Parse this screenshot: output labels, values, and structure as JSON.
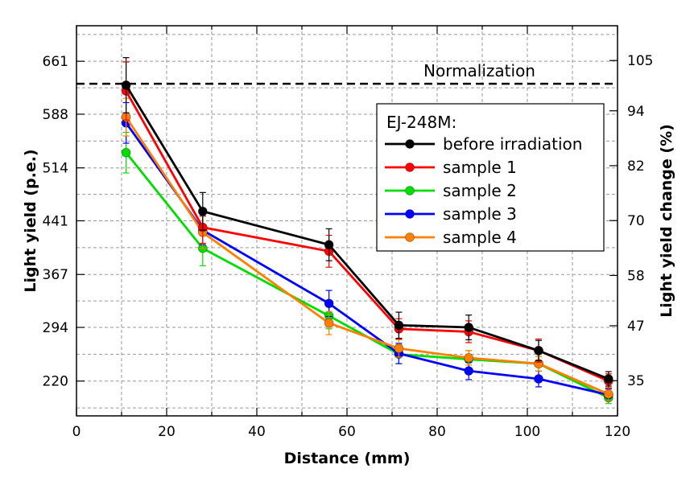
{
  "chart_data": {
    "type": "line",
    "title": "",
    "xlabel": "Distance (mm)",
    "ylabel": "Light yield (p.e.)",
    "y2label": "Light yield change (%)",
    "xlim": [
      0,
      120
    ],
    "ylim": [
      172,
      710
    ],
    "y2lim": [
      27.3,
      112.6
    ],
    "grid": true,
    "x_ticks": [
      0,
      20,
      40,
      60,
      80,
      100,
      120
    ],
    "x_tick_labels": [
      "0",
      "20",
      "40",
      "60",
      "80",
      "100",
      "120"
    ],
    "y_ticks": [
      220,
      294,
      367,
      441,
      514,
      588,
      661
    ],
    "y_tick_labels": [
      "220",
      "294",
      "367",
      "441",
      "514",
      "588",
      "661"
    ],
    "y2_ticks": [
      35,
      47,
      58,
      70,
      82,
      94,
      105
    ],
    "y2_tick_labels": [
      "35",
      "47",
      "58",
      "70",
      "82",
      "94",
      "105"
    ],
    "reference_line": {
      "label": "Normalization",
      "value": 630,
      "style": "dashed",
      "color": "#000000"
    },
    "legend": {
      "title": "EJ-248M:",
      "position": "top-right"
    },
    "x": [
      11,
      28,
      56,
      71.5,
      87,
      102.5,
      118
    ],
    "series": [
      {
        "name": "before irradiation",
        "color": "#000000",
        "values": [
          628,
          454,
          408,
          297,
          294,
          262,
          223
        ],
        "errors": [
          38,
          26,
          22,
          18,
          17,
          14,
          10
        ]
      },
      {
        "name": "sample 1",
        "color": "#ff0000",
        "values": [
          620,
          432,
          399,
          292,
          288,
          262,
          220
        ],
        "errors": [
          40,
          22,
          22,
          14,
          15,
          16,
          10
        ]
      },
      {
        "name": "sample 2",
        "color": "#00dd00",
        "values": [
          535,
          403,
          310,
          257,
          250,
          244,
          197
        ],
        "errors": [
          28,
          24,
          18,
          13,
          12,
          10,
          8
        ]
      },
      {
        "name": "sample 3",
        "color": "#0000ff",
        "values": [
          576,
          428,
          327,
          258,
          234,
          223,
          201
        ],
        "errors": [
          28,
          20,
          18,
          14,
          12,
          11,
          8
        ]
      },
      {
        "name": "sample 4",
        "color": "#ff7f00",
        "values": [
          584,
          425,
          300,
          265,
          252,
          244,
          202
        ],
        "errors": [
          26,
          22,
          16,
          12,
          10,
          10,
          9
        ]
      }
    ]
  }
}
